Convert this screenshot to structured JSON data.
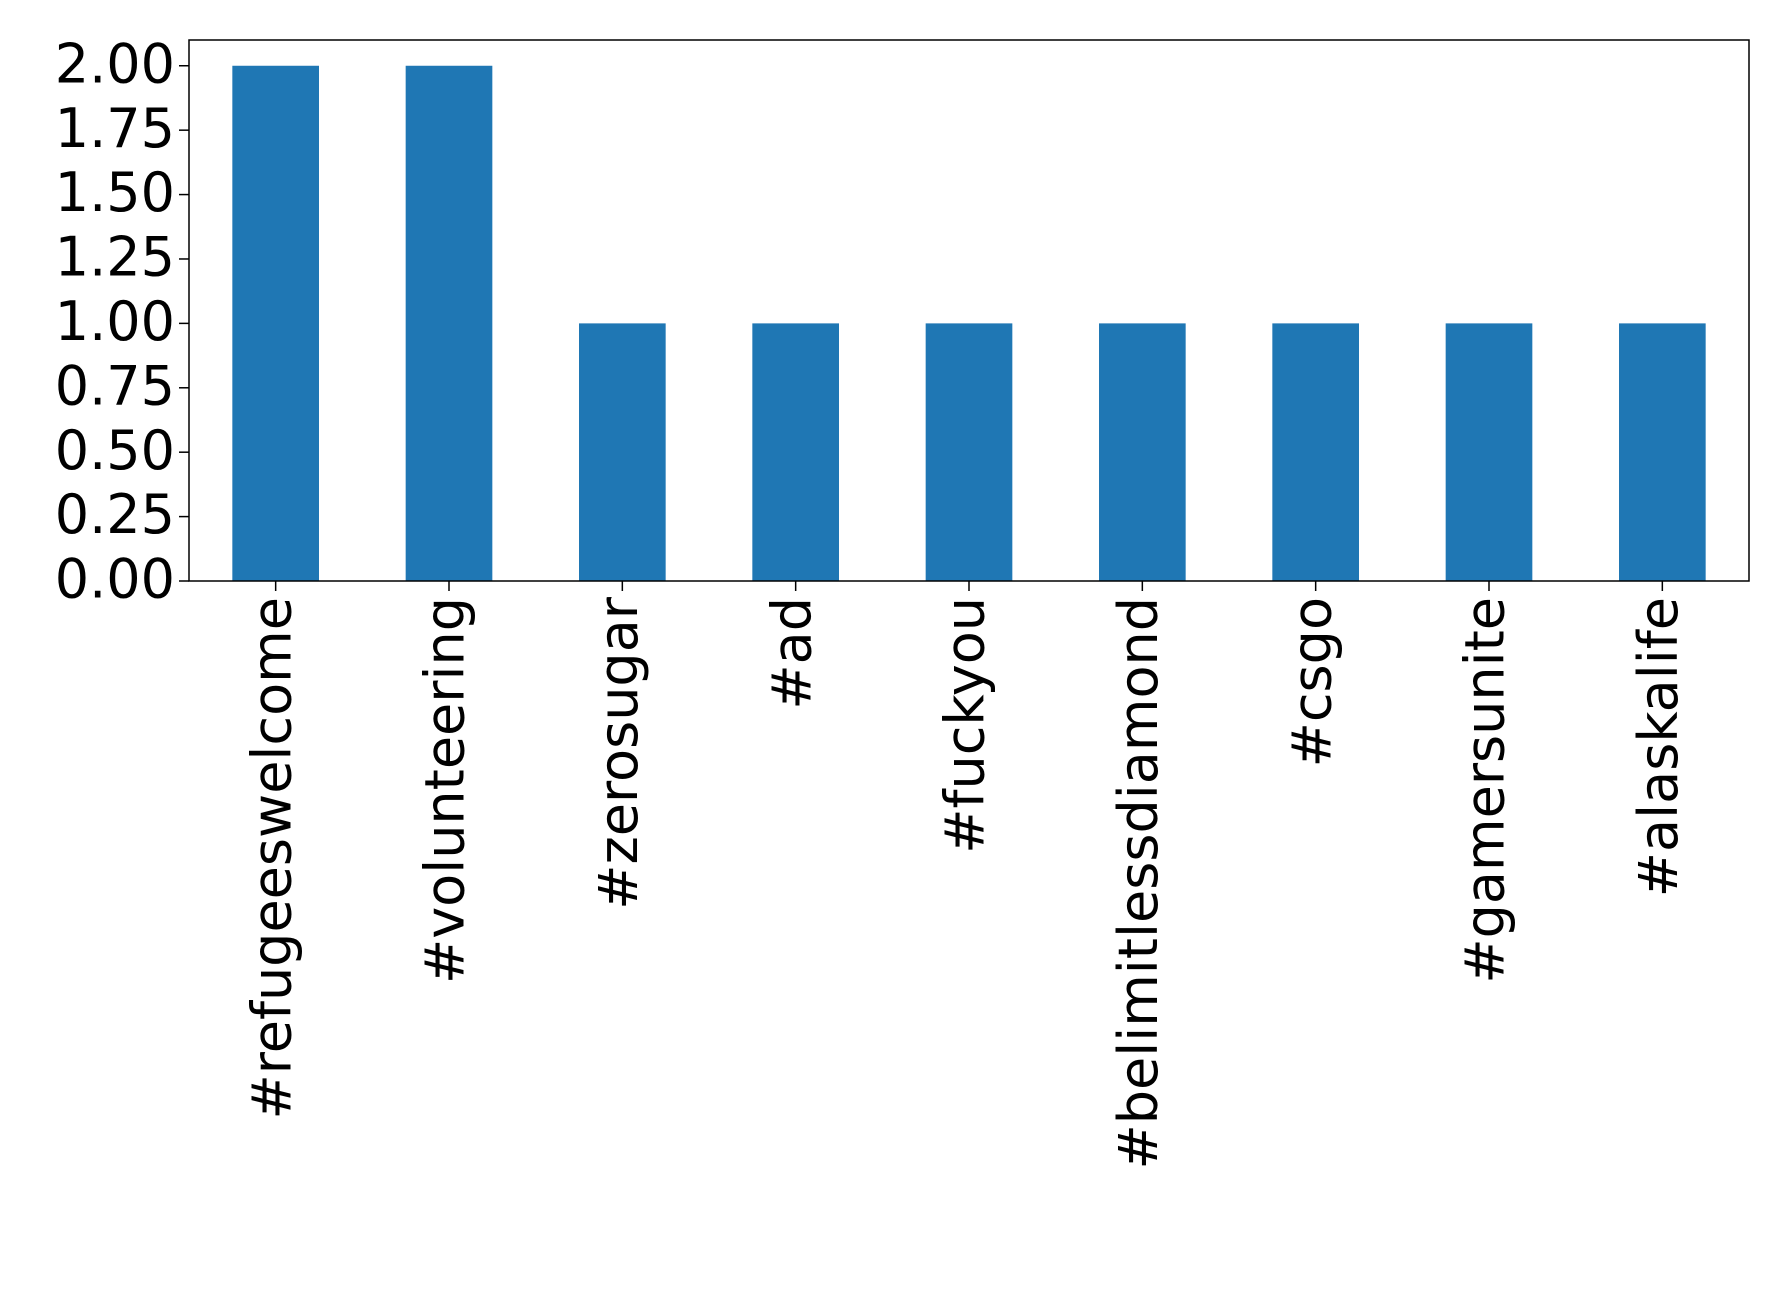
{
  "chart_data": {
    "type": "bar",
    "categories": [
      "#refugeeswelcome",
      "#volunteering",
      "#zerosugar",
      "#ad",
      "#fuckyou",
      "#belimitlessdiamond",
      "#csgo",
      "#gamersunite",
      "#alaskalife"
    ],
    "values": [
      2,
      2,
      1,
      1,
      1,
      1,
      1,
      1,
      1
    ],
    "color": "#1f77b4",
    "ylim": [
      0,
      2.1
    ],
    "yticks": [
      {
        "value": 0,
        "label": "0.00"
      },
      {
        "value": 0.25,
        "label": "0.25"
      },
      {
        "value": 0.5,
        "label": "0.50"
      },
      {
        "value": 0.75,
        "label": "0.75"
      },
      {
        "value": 1,
        "label": "1.00"
      },
      {
        "value": 1.25,
        "label": "1.25"
      },
      {
        "value": 1.5,
        "label": "1.50"
      },
      {
        "value": 1.75,
        "label": "1.75"
      },
      {
        "value": 2,
        "label": "2.00"
      }
    ],
    "grid": false
  }
}
